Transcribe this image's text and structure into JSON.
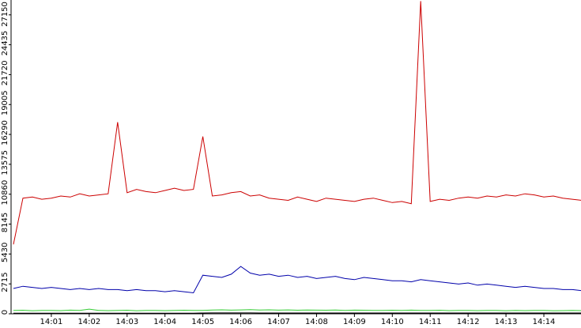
{
  "chart_data": {
    "type": "line",
    "categories": [
      null,
      null,
      null,
      null,
      "14:01",
      null,
      null,
      null,
      "14:02",
      null,
      null,
      null,
      "14:03",
      null,
      null,
      null,
      "14:04",
      null,
      null,
      null,
      "14:05",
      null,
      null,
      null,
      "14:06",
      null,
      null,
      null,
      "14:07",
      null,
      null,
      null,
      "14:08",
      null,
      null,
      null,
      "14:09",
      null,
      null,
      null,
      "14:10",
      null,
      null,
      null,
      "14:11",
      null,
      null,
      null,
      "14:12",
      null,
      null,
      null,
      "14:13",
      null,
      null,
      null,
      "14:14",
      null,
      null,
      null,
      null
    ],
    "series": [
      {
        "color": "#cc0000",
        "values": [
          6300,
          10500,
          10600,
          10400,
          10500,
          10700,
          10600,
          10900,
          10700,
          10800,
          10900,
          17400,
          11000,
          11300,
          11100,
          11000,
          11200,
          11400,
          11200,
          11300,
          16100,
          10700,
          10800,
          11000,
          11100,
          10700,
          10800,
          10500,
          10400,
          10300,
          10600,
          10400,
          10200,
          10500,
          10400,
          10300,
          10200,
          10400,
          10500,
          10300,
          10100,
          10200,
          10000,
          28400,
          10200,
          10400,
          10300,
          10500,
          10600,
          10500,
          10700,
          10600,
          10800,
          10700,
          10900,
          10800,
          10600,
          10700,
          10500,
          10400,
          10300
        ]
      },
      {
        "color": "#0000aa",
        "values": [
          2300,
          2500,
          2400,
          2300,
          2400,
          2300,
          2200,
          2300,
          2200,
          2300,
          2200,
          2200,
          2100,
          2200,
          2100,
          2100,
          2000,
          2100,
          2000,
          1900,
          3500,
          3400,
          3300,
          3600,
          4300,
          3700,
          3500,
          3600,
          3400,
          3500,
          3300,
          3400,
          3200,
          3300,
          3400,
          3200,
          3100,
          3300,
          3200,
          3100,
          3000,
          3000,
          2900,
          3100,
          3000,
          2900,
          2800,
          2700,
          2800,
          2600,
          2700,
          2600,
          2500,
          2400,
          2500,
          2400,
          2300,
          2300,
          2200,
          2200,
          2100
        ]
      },
      {
        "color": "#33cc33",
        "values": [
          300,
          320,
          280,
          310,
          300,
          290,
          330,
          300,
          420,
          310,
          290,
          300,
          320,
          280,
          300,
          310,
          290,
          300,
          320,
          300,
          310,
          340,
          360,
          330,
          350,
          370,
          340,
          360,
          330,
          350,
          320,
          340,
          330,
          320,
          340,
          310,
          330,
          320,
          300,
          310,
          320,
          300,
          330,
          310,
          300,
          320,
          290,
          310,
          300,
          290,
          310,
          300,
          280,
          300,
          290,
          310,
          300,
          280,
          290,
          300,
          290
        ]
      },
      {
        "color": "#000000",
        "values": [
          60,
          60,
          60,
          60,
          60,
          60,
          60,
          60,
          60,
          60,
          60,
          60,
          60,
          60,
          60,
          60,
          60,
          60,
          60,
          60,
          70,
          80,
          80,
          80,
          80,
          80,
          70,
          70,
          70,
          70,
          70,
          70,
          70,
          70,
          70,
          70,
          70,
          70,
          70,
          70,
          70,
          70,
          70,
          70,
          70,
          70,
          70,
          70,
          70,
          70,
          70,
          70,
          70,
          70,
          70,
          70,
          70,
          70,
          70,
          70,
          70
        ]
      }
    ],
    "ylim": [
      0,
      28500
    ],
    "yticks": [
      0,
      2715,
      5430,
      8145,
      10860,
      13575,
      16290,
      19005,
      21720,
      24435,
      27150
    ]
  }
}
